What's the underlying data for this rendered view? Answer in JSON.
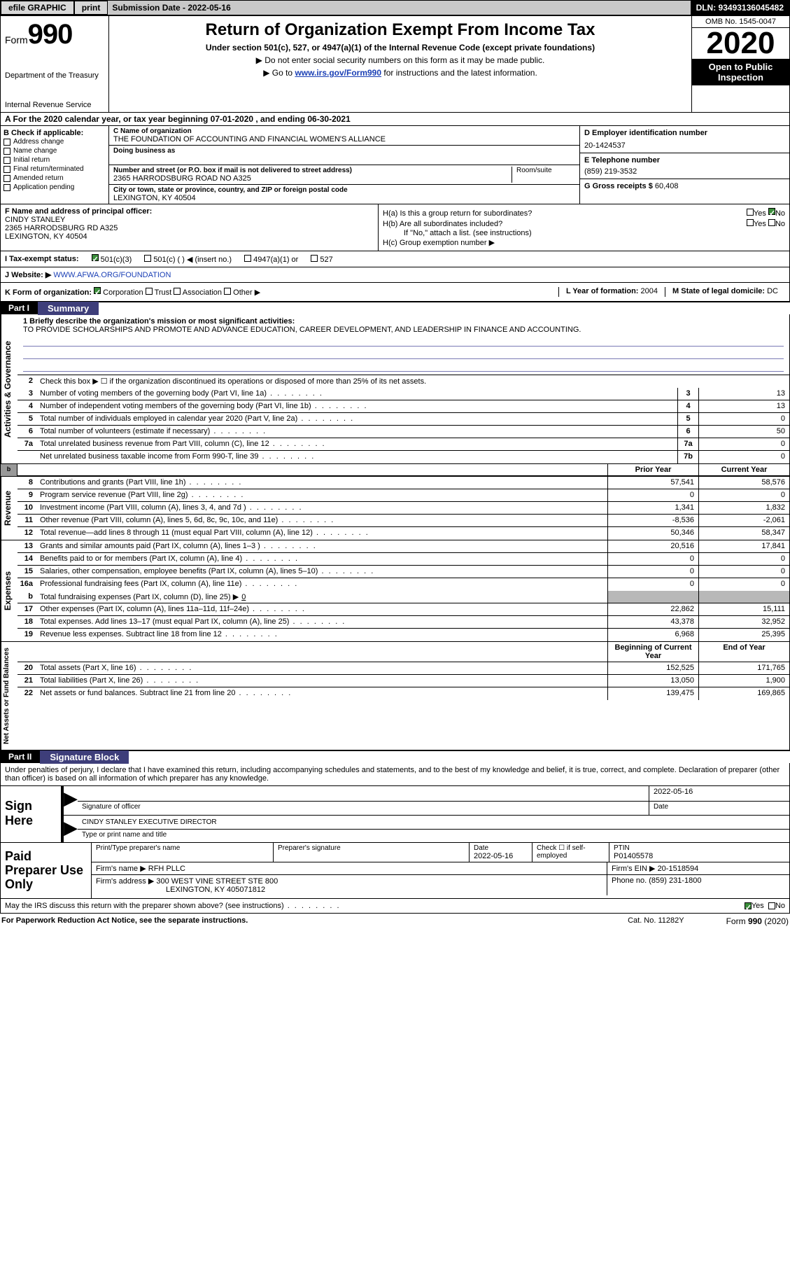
{
  "topbar": {
    "efile": "efile GRAPHIC",
    "print": "print",
    "subdate_label": "Submission Date - 2022-05-16",
    "dln": "DLN: 93493136045482"
  },
  "header": {
    "form_prefix": "Form",
    "form_num": "990",
    "dept1": "Department of the Treasury",
    "dept2": "Internal Revenue Service",
    "title": "Return of Organization Exempt From Income Tax",
    "sub1": "Under section 501(c), 527, or 4947(a)(1) of the Internal Revenue Code (except private foundations)",
    "arrow1": "▶ Do not enter social security numbers on this form as it may be made public.",
    "arrow2_pre": "▶ Go to ",
    "arrow2_link": "www.irs.gov/Form990",
    "arrow2_post": " for instructions and the latest information.",
    "omb": "OMB No. 1545-0047",
    "year": "2020",
    "open": "Open to Public Inspection"
  },
  "rowA": "A For the 2020 calendar year, or tax year beginning 07-01-2020    , and ending 06-30-2021",
  "colB": {
    "head": "B Check if applicable:",
    "items": [
      "Address change",
      "Name change",
      "Initial return",
      "Final return/terminated",
      "Amended return",
      "Application pending"
    ]
  },
  "colC": {
    "name_label": "C Name of organization",
    "name": "THE FOUNDATION OF ACCOUNTING AND FINANCIAL WOMEN'S ALLIANCE",
    "dba_label": "Doing business as",
    "addr_label": "Number and street (or P.O. box if mail is not delivered to street address)",
    "room_label": "Room/suite",
    "addr": "2365 HARRODSBURG ROAD NO A325",
    "city_label": "City or town, state or province, country, and ZIP or foreign postal code",
    "city": "LEXINGTON, KY  40504"
  },
  "colD": {
    "ein_label": "D Employer identification number",
    "ein": "20-1424537",
    "phone_label": "E Telephone number",
    "phone": "(859) 219-3532",
    "gross_label": "G Gross receipts $",
    "gross": "60,408"
  },
  "rowF": {
    "label": "F Name and address of principal officer:",
    "name": "CINDY STANLEY",
    "addr1": "2365 HARRODSBURG RD A325",
    "addr2": "LEXINGTON, KY  40504",
    "ha": "H(a)  Is this a group return for subordinates?",
    "hb": "H(b)  Are all subordinates included?",
    "hb_note": "If \"No,\" attach a list. (see instructions)",
    "hc": "H(c)  Group exemption number ▶",
    "yes": "Yes",
    "no": "No"
  },
  "rowI": {
    "label": "I   Tax-exempt status:",
    "o1": "501(c)(3)",
    "o2": "501(c) (  ) ◀ (insert no.)",
    "o3": "4947(a)(1) or",
    "o4": "527"
  },
  "rowJ": {
    "label": "J   Website: ▶",
    "url": "WWW.AFWA.ORG/FOUNDATION"
  },
  "rowK": {
    "label": "K Form of organization:",
    "o1": "Corporation",
    "o2": "Trust",
    "o3": "Association",
    "o4": "Other ▶",
    "l_label": "L Year of formation:",
    "l_val": "2004",
    "m_label": "M State of legal domicile:",
    "m_val": "DC"
  },
  "part1": {
    "tab": "Part I",
    "name": "Summary"
  },
  "summary": {
    "sec1_label": "Activities & Governance",
    "line1_label": "1  Briefly describe the organization's mission or most significant activities:",
    "line1_text": "TO PROVIDE SCHOLARSHIPS AND PROMOTE AND ADVANCE EDUCATION, CAREER DEVELOPMENT, AND LEADERSHIP IN FINANCE AND ACCOUNTING.",
    "line2": "Check this box ▶ ☐  if the organization discontinued its operations or disposed of more than 25% of its net assets.",
    "rows_gov": [
      {
        "n": "3",
        "d": "Number of voting members of the governing body (Part VI, line 1a)",
        "c": "3",
        "v": "13"
      },
      {
        "n": "4",
        "d": "Number of independent voting members of the governing body (Part VI, line 1b)",
        "c": "4",
        "v": "13"
      },
      {
        "n": "5",
        "d": "Total number of individuals employed in calendar year 2020 (Part V, line 2a)",
        "c": "5",
        "v": "0"
      },
      {
        "n": "6",
        "d": "Total number of volunteers (estimate if necessary)",
        "c": "6",
        "v": "50"
      },
      {
        "n": "7a",
        "d": "Total unrelated business revenue from Part VIII, column (C), line 12",
        "c": "7a",
        "v": "0"
      },
      {
        "n": "",
        "d": "Net unrelated business taxable income from Form 990-T, line 39",
        "c": "7b",
        "v": "0"
      }
    ],
    "prior_hdr": "Prior Year",
    "curr_hdr": "Current Year",
    "sec2_label": "Revenue",
    "rows_rev": [
      {
        "n": "8",
        "d": "Contributions and grants (Part VIII, line 1h)",
        "p": "57,541",
        "c": "58,576"
      },
      {
        "n": "9",
        "d": "Program service revenue (Part VIII, line 2g)",
        "p": "0",
        "c": "0"
      },
      {
        "n": "10",
        "d": "Investment income (Part VIII, column (A), lines 3, 4, and 7d )",
        "p": "1,341",
        "c": "1,832"
      },
      {
        "n": "11",
        "d": "Other revenue (Part VIII, column (A), lines 5, 6d, 8c, 9c, 10c, and 11e)",
        "p": "-8,536",
        "c": "-2,061"
      },
      {
        "n": "12",
        "d": "Total revenue—add lines 8 through 11 (must equal Part VIII, column (A), line 12)",
        "p": "50,346",
        "c": "58,347"
      }
    ],
    "sec3_label": "Expenses",
    "rows_exp": [
      {
        "n": "13",
        "d": "Grants and similar amounts paid (Part IX, column (A), lines 1–3 )",
        "p": "20,516",
        "c": "17,841"
      },
      {
        "n": "14",
        "d": "Benefits paid to or for members (Part IX, column (A), line 4)",
        "p": "0",
        "c": "0"
      },
      {
        "n": "15",
        "d": "Salaries, other compensation, employee benefits (Part IX, column (A), lines 5–10)",
        "p": "0",
        "c": "0"
      },
      {
        "n": "16a",
        "d": "Professional fundraising fees (Part IX, column (A), line 11e)",
        "p": "0",
        "c": "0"
      }
    ],
    "row16b": {
      "n": "b",
      "d": "Total fundraising expenses (Part IX, column (D), line 25) ▶",
      "v": "0"
    },
    "rows_exp2": [
      {
        "n": "17",
        "d": "Other expenses (Part IX, column (A), lines 11a–11d, 11f–24e)",
        "p": "22,862",
        "c": "15,111"
      },
      {
        "n": "18",
        "d": "Total expenses. Add lines 13–17 (must equal Part IX, column (A), line 25)",
        "p": "43,378",
        "c": "32,952"
      },
      {
        "n": "19",
        "d": "Revenue less expenses. Subtract line 18 from line 12",
        "p": "6,968",
        "c": "25,395"
      }
    ],
    "sec4_label": "Net Assets or Fund Balances",
    "begin_hdr": "Beginning of Current Year",
    "end_hdr": "End of Year",
    "rows_net": [
      {
        "n": "20",
        "d": "Total assets (Part X, line 16)",
        "p": "152,525",
        "c": "171,765"
      },
      {
        "n": "21",
        "d": "Total liabilities (Part X, line 26)",
        "p": "13,050",
        "c": "1,900"
      },
      {
        "n": "22",
        "d": "Net assets or fund balances. Subtract line 21 from line 20",
        "p": "139,475",
        "c": "169,865"
      }
    ]
  },
  "part2": {
    "tab": "Part II",
    "name": "Signature Block"
  },
  "sig": {
    "intro": "Under penalties of perjury, I declare that I have examined this return, including accompanying schedules and statements, and to the best of my knowledge and belief, it is true, correct, and complete. Declaration of preparer (other than officer) is based on all information of which preparer has any knowledge.",
    "sign_here": "Sign Here",
    "sig_officer": "Signature of officer",
    "date": "Date",
    "date_val": "2022-05-16",
    "name_typed": "CINDY STANLEY EXECUTIVE DIRECTOR",
    "name_label": "Type or print name and title"
  },
  "prep": {
    "left": "Paid Preparer Use Only",
    "h1": "Print/Type preparer's name",
    "h2": "Preparer's signature",
    "h3_label": "Date",
    "h3": "2022-05-16",
    "h4_label": "Check ☐ if self-employed",
    "h5_label": "PTIN",
    "h5": "P01405578",
    "firm_name_label": "Firm's name    ▶",
    "firm_name": "RFH PLLC",
    "firm_ein_label": "Firm's EIN ▶",
    "firm_ein": "20-1518594",
    "firm_addr_label": "Firm's address ▶",
    "firm_addr1": "300 WEST VINE STREET STE 800",
    "firm_addr2": "LEXINGTON, KY  405071812",
    "phone_label": "Phone no.",
    "phone": "(859) 231-1800"
  },
  "discuss": {
    "q": "May the IRS discuss this return with the preparer shown above? (see instructions)",
    "yes": "Yes",
    "no": "No"
  },
  "footer": {
    "l": "For Paperwork Reduction Act Notice, see the separate instructions.",
    "m": "Cat. No. 11282Y",
    "r": "Form 990 (2020)"
  }
}
